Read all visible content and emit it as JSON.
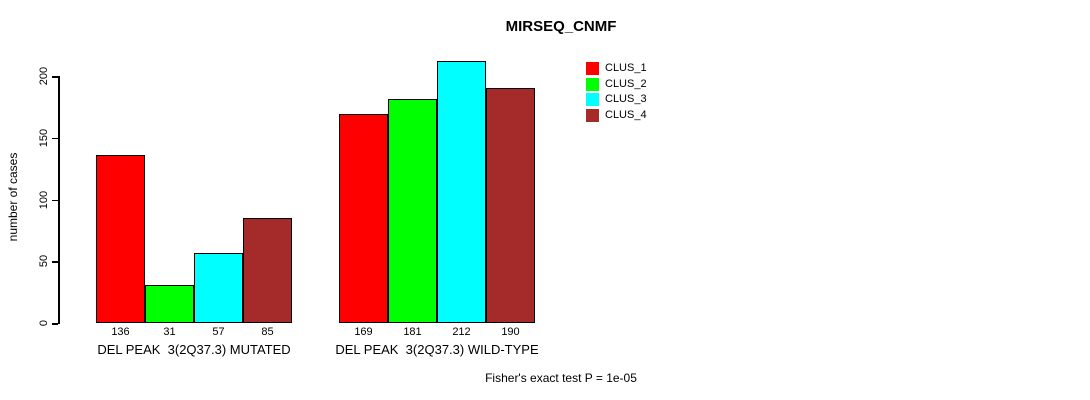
{
  "chart_data": {
    "type": "bar",
    "title": "MIRSEQ_CNMF",
    "ylabel": "number of cases",
    "xlabel": "",
    "ylim": [
      0,
      200
    ],
    "yticks": [
      0,
      50,
      100,
      150,
      200
    ],
    "grid": false,
    "legend_position": "top-right",
    "series": [
      "CLUS_1",
      "CLUS_2",
      "CLUS_3",
      "CLUS_4"
    ],
    "colors": [
      "#FF0000",
      "#00FF00",
      "#00FFFF",
      "#A52A2A"
    ],
    "groups": [
      {
        "label": "DEL PEAK  3(2Q37.3) MUTATED",
        "values": [
          136,
          31,
          57,
          85
        ]
      },
      {
        "label": "DEL PEAK  3(2Q37.3) WILD-TYPE",
        "values": [
          169,
          181,
          212,
          190
        ]
      }
    ],
    "bar_value_labels": true,
    "annotation": "Fisher's exact test P = 1e-05"
  }
}
